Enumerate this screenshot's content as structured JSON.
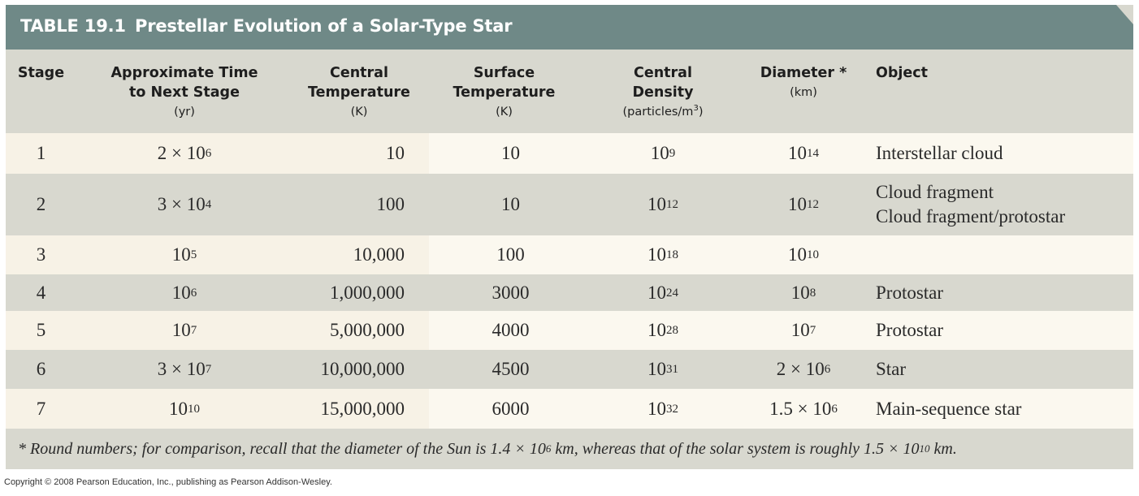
{
  "title": {
    "number": "TABLE 19.1",
    "text": "Prestellar Evolution of a Solar-Type Star"
  },
  "headers": {
    "stage": {
      "lines": [
        "Stage"
      ],
      "unit": ""
    },
    "time": {
      "lines": [
        "Approximate Time",
        "to Next Stage"
      ],
      "unit": "(yr)"
    },
    "central_temperature": {
      "lines": [
        "Central",
        "Temperature"
      ],
      "unit": "(K)"
    },
    "surface_temperature": {
      "lines": [
        "Surface",
        "Temperature"
      ],
      "unit": "(K)"
    },
    "central_density": {
      "lines": [
        "Central",
        "Density"
      ],
      "unit": "(particles/m",
      "unit_sup": "3",
      "unit_end": ")"
    },
    "diameter": {
      "lines": [
        "Diameter *"
      ],
      "unit": "(km)"
    },
    "object": {
      "lines": [
        "Object"
      ],
      "unit": ""
    }
  },
  "rows": [
    {
      "stage": "1",
      "time": {
        "base": "2 × 10",
        "exp": "6"
      },
      "central_temperature": "10",
      "surface_temperature": "10",
      "central_density": {
        "base": "10",
        "exp": "9"
      },
      "diameter": {
        "base": "10",
        "exp": "14"
      },
      "object": [
        "Interstellar cloud"
      ]
    },
    {
      "stage": "2",
      "time": {
        "base": "3 × 10",
        "exp": "4"
      },
      "central_temperature": "100",
      "surface_temperature": "10",
      "central_density": {
        "base": "10",
        "exp": "12"
      },
      "diameter": {
        "base": "10",
        "exp": "12"
      },
      "object": [
        "Cloud fragment",
        "Cloud fragment/protostar"
      ]
    },
    {
      "stage": "3",
      "time": {
        "base": "10",
        "exp": "5"
      },
      "central_temperature": "10,000",
      "surface_temperature": "100",
      "central_density": {
        "base": "10",
        "exp": "18"
      },
      "diameter": {
        "base": "10",
        "exp": "10"
      },
      "object": []
    },
    {
      "stage": "4",
      "time": {
        "base": "10",
        "exp": "6"
      },
      "central_temperature": "1,000,000",
      "surface_temperature": "3000",
      "central_density": {
        "base": "10",
        "exp": "24"
      },
      "diameter": {
        "base": "10",
        "exp": "8"
      },
      "object": [
        "Protostar"
      ]
    },
    {
      "stage": "5",
      "time": {
        "base": "10",
        "exp": "7"
      },
      "central_temperature": "5,000,000",
      "surface_temperature": "4000",
      "central_density": {
        "base": "10",
        "exp": "28"
      },
      "diameter": {
        "base": "10",
        "exp": "7"
      },
      "object": [
        "Protostar"
      ]
    },
    {
      "stage": "6",
      "time": {
        "base": "3 × 10",
        "exp": "7"
      },
      "central_temperature": "10,000,000",
      "surface_temperature": "4500",
      "central_density": {
        "base": "10",
        "exp": "31"
      },
      "diameter": {
        "base": "2 × 10",
        "exp": "6"
      },
      "object": [
        "Star"
      ]
    },
    {
      "stage": "7",
      "time": {
        "base": "10",
        "exp": "10"
      },
      "central_temperature": "15,000,000",
      "surface_temperature": "6000",
      "central_density": {
        "base": "10",
        "exp": "32"
      },
      "diameter": {
        "base": "1.5 × 10",
        "exp": "6"
      },
      "object": [
        "Main-sequence star"
      ]
    }
  ],
  "footnote": {
    "part1": "* Round numbers; for comparison, recall that the diameter of the Sun is 1.4 × 10",
    "exp1": "6",
    "part2": " km, whereas that of the solar system is roughly 1.5 × 10",
    "exp2": "10",
    "part3": " km."
  },
  "copyright": "Copyright © 2008 Pearson Education, Inc., publishing as Pearson Addison-Wesley.",
  "colors": {
    "title_bar": "#6f8987",
    "band_dark": "#d8d8cf",
    "band_light": "#f7f2e6",
    "band_light_right": "#fbf8ef"
  }
}
